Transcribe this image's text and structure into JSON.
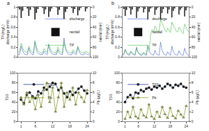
{
  "chart_data": [
    {
      "type": "line",
      "title": "a",
      "x": [
        0,
        1,
        2,
        3,
        4,
        5,
        6,
        7,
        8,
        9,
        10,
        11,
        12,
        13,
        14,
        15,
        16,
        17,
        18,
        19,
        20,
        21,
        22,
        23,
        24,
        25,
        26,
        27,
        28,
        29,
        30,
        31,
        32,
        33,
        34,
        35,
        36,
        37,
        38,
        39,
        40,
        41,
        42,
        43,
        44,
        45,
        46,
        47
      ],
      "series": [
        {
          "name": "discharge",
          "color": "#3b5bdb",
          "type": "line",
          "values": [
            0.05,
            0.06,
            0.22,
            0.12,
            0.07,
            0.05,
            0.05,
            0.18,
            0.09,
            0.06,
            0.05,
            0.31,
            0.14,
            0.08,
            0.06,
            0.05,
            0.05,
            0.12,
            0.07,
            0.05,
            0.26,
            0.11,
            0.07,
            0.06,
            0.05,
            0.05,
            0.15,
            0.08,
            0.06,
            0.05,
            0.38,
            0.16,
            0.09,
            0.06,
            0.05,
            0.05,
            0.11,
            0.07,
            0.05,
            0.2,
            0.1,
            0.06,
            0.05,
            0.05,
            0.09,
            0.06,
            0.05,
            0.05
          ]
        },
        {
          "name": "rainfall",
          "color": "#111111",
          "type": "bar",
          "axis": "y2",
          "values": [
            2,
            5,
            22,
            8,
            0,
            0,
            3,
            18,
            6,
            0,
            1,
            25,
            12,
            4,
            0,
            0,
            2,
            14,
            5,
            0,
            20,
            9,
            3,
            0,
            0,
            1,
            16,
            6,
            0,
            0,
            24,
            10,
            4,
            0,
            0,
            2,
            12,
            4,
            0,
            17,
            7,
            2,
            0,
            0,
            9,
            3,
            0,
            0
          ]
        },
        {
          "name": "TP",
          "color": "#3cbf3c",
          "type": "line",
          "values": [
            0.1,
            0.12,
            0.28,
            0.18,
            0.12,
            0.1,
            0.09,
            0.22,
            0.14,
            0.1,
            0.09,
            0.33,
            0.2,
            0.13,
            0.1,
            0.09,
            0.08,
            0.17,
            0.12,
            0.1,
            0.25,
            0.16,
            0.11,
            0.1,
            0.09,
            0.08,
            0.2,
            0.13,
            0.1,
            0.09,
            0.3,
            0.19,
            0.13,
            0.1,
            0.09,
            0.08,
            0.15,
            0.11,
            0.09,
            0.22,
            0.14,
            0.1,
            0.09,
            0.08,
            0.12,
            0.1,
            0.09,
            0.08
          ]
        }
      ],
      "ylabel": [
        "TP (mg/L)",
        "discharge (m³/s)"
      ],
      "y2label": "rainfall (mm)",
      "xlim": [
        0,
        47
      ],
      "ylim": [
        0,
        1
      ],
      "yticks": [
        0,
        0.2,
        0.4,
        0.6,
        0.8,
        1
      ],
      "y2lim": [
        100,
        0
      ],
      "y2ticks": [
        0,
        20,
        40,
        60,
        80,
        100
      ],
      "grid": false,
      "legend": "middle right",
      "tick_labels": "y"
    },
    {
      "type": "line",
      "title": "b",
      "x": [
        0,
        1,
        2,
        3,
        4,
        5,
        6,
        7,
        8,
        9,
        10,
        11,
        12,
        13,
        14,
        15,
        16,
        17,
        18,
        19,
        20,
        21,
        22,
        23,
        24,
        25,
        26,
        27,
        28,
        29,
        30,
        31,
        32,
        33,
        34,
        35,
        36,
        37,
        38,
        39,
        40,
        41,
        42,
        43,
        44,
        45,
        46,
        47
      ],
      "series": [
        {
          "name": "discharge",
          "color": "#3b5bdb",
          "type": "line",
          "values": [
            0.04,
            0.05,
            0.16,
            0.08,
            0.05,
            0.04,
            0.12,
            0.07,
            0.05,
            0.04,
            0.2,
            0.1,
            0.06,
            0.04,
            0.04,
            0.09,
            0.05,
            0.04,
            0.24,
            0.12,
            0.07,
            0.05,
            0.04,
            0.14,
            0.07,
            0.05,
            0.04,
            0.3,
            0.15,
            0.08,
            0.05,
            0.04,
            0.11,
            0.06,
            0.04,
            0.22,
            0.11,
            0.06,
            0.05,
            0.04,
            0.13,
            0.07,
            0.05,
            0.04,
            0.18,
            0.09,
            0.05,
            0.04
          ]
        },
        {
          "name": "rainfall",
          "color": "#111111",
          "type": "bar",
          "axis": "y2",
          "values": [
            1,
            4,
            18,
            6,
            0,
            2,
            15,
            5,
            0,
            0,
            22,
            9,
            3,
            0,
            1,
            11,
            4,
            0,
            25,
            10,
            3,
            1,
            0,
            16,
            6,
            2,
            0,
            24,
            12,
            4,
            0,
            1,
            13,
            5,
            0,
            21,
            8,
            3,
            0,
            0,
            15,
            6,
            2,
            0,
            19,
            7,
            1,
            0
          ]
        },
        {
          "name": "TP",
          "color": "#3cbf3c",
          "type": "line",
          "values": [
            0.06,
            0.07,
            0.15,
            0.09,
            0.07,
            0.06,
            0.12,
            0.08,
            0.06,
            0.06,
            0.18,
            0.1,
            0.07,
            0.06,
            0.06,
            0.1,
            0.07,
            0.06,
            0.22,
            0.14,
            0.45,
            0.55,
            0.5,
            0.62,
            0.58,
            0.48,
            0.52,
            0.75,
            0.68,
            0.6,
            0.55,
            0.5,
            0.58,
            0.53,
            0.49,
            0.7,
            0.64,
            0.57,
            0.52,
            0.5,
            0.6,
            0.56,
            0.5,
            0.47,
            0.66,
            0.6,
            0.53,
            0.5
          ]
        }
      ],
      "ylabel": [
        "TP (mg/L)",
        "discharge (m³/s)"
      ],
      "y2label": "rainfall (mm)",
      "xlim": [
        0,
        47
      ],
      "ylim": [
        0,
        1
      ],
      "yticks": [
        0,
        0.2,
        0.4,
        0.6,
        0.8,
        1
      ],
      "y2lim": [
        100,
        0
      ],
      "y2ticks": [
        0,
        20,
        40,
        60,
        80,
        100
      ],
      "grid": false,
      "legend": "middle left",
      "tick_labels": "y"
    },
    {
      "type": "line",
      "x": [
        1,
        2,
        3,
        4,
        5,
        6,
        7,
        8,
        9,
        10,
        11,
        12,
        13,
        14,
        15,
        16,
        17,
        18,
        19,
        20,
        21,
        22,
        23,
        24
      ],
      "series": [
        {
          "name": "TSS",
          "color": "#1f3fa0",
          "marker": "circle",
          "values": [
            45,
            38,
            55,
            60,
            52,
            48,
            62,
            58,
            70,
            66,
            72,
            80,
            78,
            65,
            70,
            58,
            50,
            62,
            55,
            60,
            68,
            72,
            64,
            58
          ]
        },
        {
          "name": "Pb",
          "color": "#8a9a2a",
          "marker": "triangle",
          "axis": "y2",
          "values": [
            5,
            3.5,
            6,
            4,
            5,
            2.5,
            5.5,
            3,
            6.5,
            8,
            4,
            7,
            2,
            5,
            8,
            3,
            6,
            4.5,
            7,
            3.5,
            6,
            5,
            4,
            6.5
          ]
        }
      ],
      "ylabel": "TSS",
      "y2label": "Pb (µg/L)",
      "xlim": [
        0,
        25
      ],
      "xticks": [
        1,
        6,
        12,
        18,
        24
      ],
      "ylim": [
        0,
        100
      ],
      "yticks": [
        0,
        20,
        40,
        60,
        80,
        100
      ],
      "y2lim": [
        0,
        10
      ],
      "y2ticks": [
        0,
        2,
        4,
        6,
        8,
        10
      ],
      "grid": false,
      "legend": "top left"
    },
    {
      "type": "line",
      "x": [
        1,
        2,
        3,
        4,
        5,
        6,
        7,
        8,
        9,
        10,
        11,
        12,
        13,
        14,
        15,
        16,
        17,
        18,
        19,
        20,
        21,
        22,
        23,
        24
      ],
      "series": [
        {
          "name": "TSS",
          "color": "#1f3fa0",
          "marker": "circle",
          "values": [
            40,
            50,
            55,
            48,
            60,
            58,
            65,
            62,
            68,
            70,
            66,
            72,
            70,
            74,
            68,
            72,
            78,
            75,
            70,
            76,
            74,
            78,
            72,
            70
          ]
        },
        {
          "name": "Pb",
          "color": "#8a9a2a",
          "marker": "triangle",
          "axis": "y2",
          "values": [
            0.5,
            2,
            0.8,
            3,
            1,
            0.6,
            2.5,
            1.2,
            0.8,
            3.5,
            1,
            0.5,
            2,
            0.9,
            3,
            1.5,
            0.7,
            2.8,
            1.1,
            0.6,
            2.2,
            1.4,
            0.8,
            3.2
          ]
        }
      ],
      "ylabel": "TSS",
      "y2label": "Pb (µg/L)",
      "xlim": [
        0,
        25
      ],
      "xticks": [
        1,
        6,
        12,
        18,
        24
      ],
      "ylim": [
        0,
        100
      ],
      "yticks": [
        0,
        20,
        40,
        60,
        80,
        100
      ],
      "y2lim": [
        0,
        10
      ],
      "y2ticks": [
        0,
        2,
        4,
        6,
        8,
        10
      ],
      "grid": false,
      "legend": "top left"
    }
  ]
}
